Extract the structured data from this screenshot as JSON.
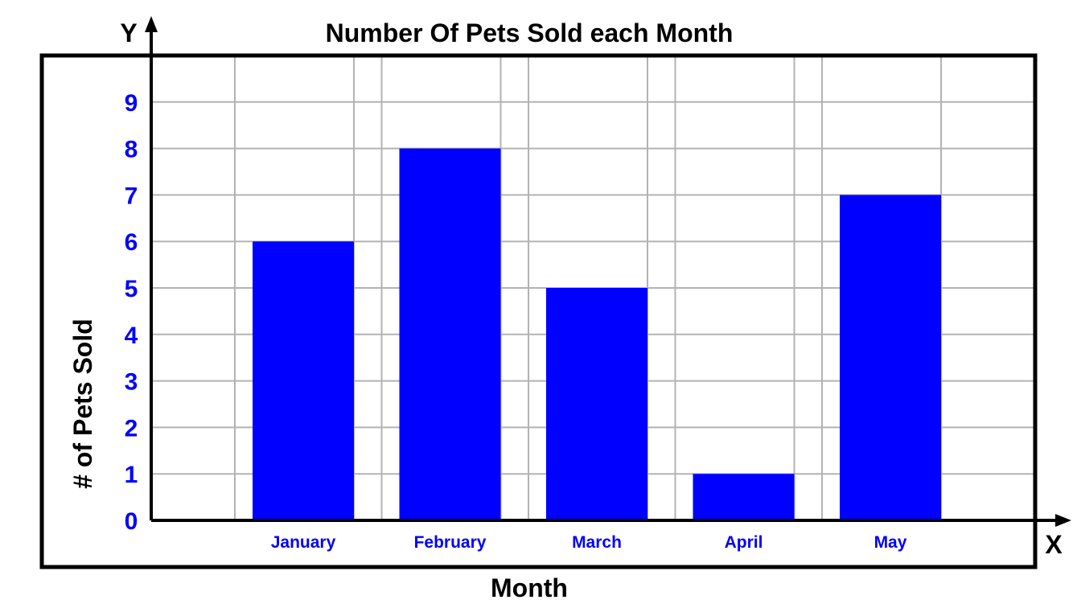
{
  "colors": {
    "bar": "#0000ff",
    "tick_label": "#0000ff",
    "grid": "#b3b3b3",
    "axis": "#000000",
    "frame": "#000000"
  },
  "chart_data": {
    "type": "bar",
    "title": "Number Of Pets Sold each Month",
    "xlabel": "Month",
    "ylabel": "# of Pets Sold",
    "x_axis_letter": "X",
    "y_axis_letter": "Y",
    "categories": [
      "January",
      "February",
      "March",
      "April",
      "May"
    ],
    "values": [
      6,
      8,
      5,
      1,
      7
    ],
    "yticks": [
      0,
      1,
      2,
      3,
      4,
      5,
      6,
      7,
      8,
      9
    ],
    "ylim": [
      0,
      9
    ],
    "grid": true,
    "legend": "none"
  }
}
